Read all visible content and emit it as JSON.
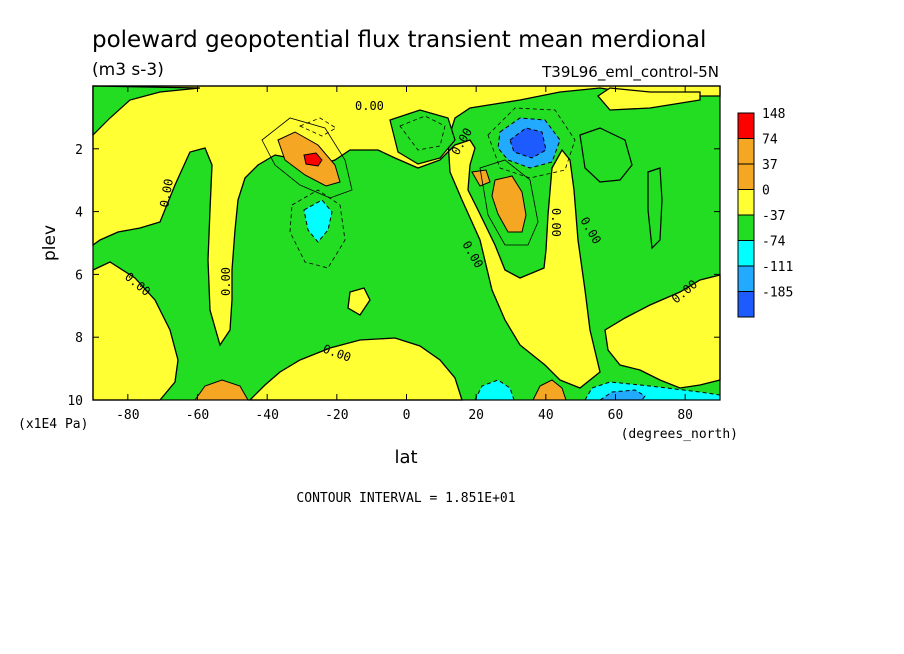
{
  "chart_data": {
    "type": "heatmap",
    "title": "poleward geopotential flux transient mean merdional",
    "units": "(m3 s-3)",
    "dataset": "T39L96_eml_control-5N",
    "xlabel": "lat",
    "xunit": "(degrees_north)",
    "ylabel": "plev",
    "yunit": "(x1E4 Pa)",
    "xlim": [
      -90,
      90
    ],
    "ylim": [
      10,
      0
    ],
    "x_ticks": [
      -80,
      -60,
      -40,
      -20,
      0,
      20,
      40,
      60,
      80
    ],
    "y_ticks": [
      2,
      4,
      6,
      8,
      10
    ],
    "contour_interval": "CONTOUR INTERVAL = 1.851E+01",
    "zero_label": "0.00",
    "colorbar": {
      "labels": [
        "148",
        "74",
        "37",
        "0",
        "-37",
        "-74",
        "-111",
        "-185"
      ],
      "colors": [
        "#ff0000",
        "#f5a623",
        "#f5a623",
        "#ffff33",
        "#22dd22",
        "#00ffff",
        "#22aaff",
        "#1e5bff"
      ]
    },
    "features": [
      {
        "lat": -25,
        "plev": 2.5,
        "value": 130,
        "color": "#ff0000"
      },
      {
        "lat": -27,
        "plev": 2.5,
        "value": 60,
        "color": "#f5a623"
      },
      {
        "lat": 30,
        "plev": 4.0,
        "value": 60,
        "color": "#f5a623"
      },
      {
        "lat": 34,
        "plev": 2.0,
        "value": -170,
        "color": "#1e5bff"
      },
      {
        "lat": -26,
        "plev": 4.3,
        "value": -55,
        "color": "#00ffff"
      },
      {
        "lat": -52,
        "plev": 9.9,
        "value": 60,
        "color": "#f5a623"
      },
      {
        "lat": 40,
        "plev": 9.9,
        "value": 60,
        "color": "#f5a623"
      },
      {
        "lat": 25,
        "plev": 9.8,
        "value": -60,
        "color": "#00ffff"
      },
      {
        "lat": 62,
        "plev": 9.8,
        "value": -80,
        "color": "#22aaff"
      }
    ]
  }
}
